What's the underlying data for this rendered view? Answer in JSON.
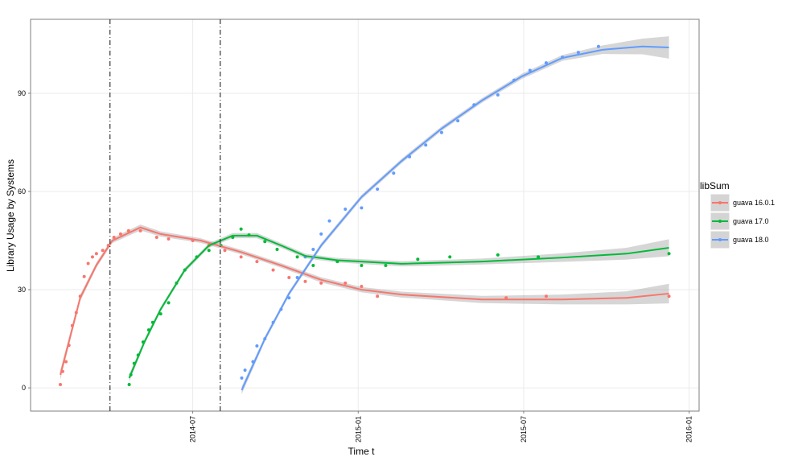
{
  "chart_data": {
    "type": "scatter",
    "x_label": "Time t",
    "y_label": "Library Usage by Systems",
    "xlim": [
      2014.01,
      2016.03
    ],
    "ylim": [
      -7.1,
      112.6
    ],
    "xticks": [
      {
        "value": 2014.5,
        "label": "2014-07"
      },
      {
        "value": 2015.0,
        "label": "2015-01"
      },
      {
        "value": 2015.5,
        "label": "2015-07"
      },
      {
        "value": 2016.0,
        "label": "2016-01"
      }
    ],
    "yticks": [
      0,
      30,
      60,
      90
    ],
    "grid": true,
    "vlines": [
      2014.25,
      2014.583
    ],
    "legend_title": "libSum",
    "legend_position": "right",
    "series": [
      {
        "name": "guava 16.0.1",
        "color": "#F8766D",
        "x": [
          2014.1,
          2014.107,
          2014.117,
          2014.126,
          2014.136,
          2014.148,
          2014.16,
          2014.172,
          2014.184,
          2014.197,
          2014.209,
          2014.228,
          2014.245,
          2014.262,
          2014.282,
          2014.306,
          2014.342,
          2014.391,
          2014.427,
          2014.5,
          2014.549,
          2014.597,
          2014.646,
          2014.694,
          2014.743,
          2014.791,
          2014.84,
          2014.888,
          2014.961,
          2015.01,
          2015.058,
          2015.447,
          2015.568,
          2015.939
        ],
        "values": [
          1,
          5,
          8,
          13,
          19,
          23,
          28,
          34,
          38,
          40,
          41,
          42,
          43.5,
          46,
          47,
          48,
          48,
          46,
          45.5,
          45,
          43.5,
          42,
          40,
          38.6,
          36,
          33.7,
          32.5,
          32,
          32,
          31,
          28,
          27.5,
          28,
          28
        ],
        "smooth": {
          "x": [
            2014.1,
            2014.16,
            2014.209,
            2014.257,
            2014.342,
            2014.403,
            2014.524,
            2014.646,
            2014.767,
            2014.888,
            2015.01,
            2015.131,
            2015.374,
            2015.617,
            2015.811,
            2015.939
          ],
          "values": [
            4,
            27.5,
            37.5,
            45,
            49,
            47,
            45,
            41.5,
            37.4,
            33,
            30,
            28.5,
            27,
            27,
            27.5,
            28.8
          ],
          "lower": [
            2.5,
            26.5,
            36.7,
            44.2,
            48.1,
            46.2,
            44.3,
            40.8,
            36.7,
            32.2,
            29.2,
            27.6,
            25.9,
            25.5,
            25.5,
            25.8
          ],
          "upper": [
            5.5,
            28.5,
            38.3,
            45.8,
            49.9,
            47.8,
            45.7,
            42.2,
            38.1,
            33.8,
            30.8,
            29.4,
            28.1,
            28.5,
            29.5,
            31.8
          ]
        }
      },
      {
        "name": "guava 17.0",
        "color": "#00BA38",
        "x": [
          2014.308,
          2014.313,
          2014.323,
          2014.335,
          2014.35,
          2014.367,
          2014.379,
          2014.403,
          2014.427,
          2014.451,
          2014.476,
          2014.512,
          2014.549,
          2014.585,
          2014.621,
          2014.646,
          2014.67,
          2014.718,
          2014.755,
          2014.816,
          2014.864,
          2014.937,
          2015.01,
          2015.083,
          2015.18,
          2015.277,
          2015.422,
          2015.544,
          2015.939
        ],
        "values": [
          1,
          4,
          7.5,
          10,
          14,
          17.7,
          20,
          22.6,
          26,
          32,
          36,
          40,
          42,
          43.5,
          46,
          48.5,
          46.7,
          44.7,
          42.3,
          40,
          37.4,
          38.6,
          37.4,
          37.4,
          39.3,
          40,
          40.6,
          40,
          41
        ],
        "smooth": {
          "x": [
            2014.308,
            2014.354,
            2014.403,
            2014.476,
            2014.549,
            2014.621,
            2014.694,
            2014.767,
            2014.84,
            2014.937,
            2015.131,
            2015.374,
            2015.617,
            2015.811,
            2015.939
          ],
          "values": [
            3,
            14,
            24,
            36,
            43.5,
            46.5,
            46.5,
            43.5,
            40.3,
            39,
            37.9,
            38.6,
            39.8,
            41,
            42.8
          ],
          "lower": [
            1.8,
            13.2,
            23.3,
            35.3,
            42.8,
            45.7,
            45.7,
            42.8,
            39.6,
            38.3,
            37.1,
            37.7,
            38.5,
            39.2,
            40.2
          ],
          "upper": [
            4.2,
            14.8,
            24.7,
            36.7,
            44.2,
            47.3,
            47.3,
            44.2,
            41,
            39.7,
            38.7,
            39.5,
            41.1,
            42.8,
            45.4
          ]
        }
      },
      {
        "name": "guava 18.0",
        "color": "#619CFF",
        "x": [
          2014.648,
          2014.658,
          2014.682,
          2014.694,
          2014.718,
          2014.743,
          2014.767,
          2014.791,
          2014.816,
          2014.84,
          2014.864,
          2014.888,
          2014.913,
          2014.961,
          2015.01,
          2015.058,
          2015.107,
          2015.155,
          2015.204,
          2015.252,
          2015.301,
          2015.35,
          2015.422,
          2015.471,
          2015.519,
          2015.568,
          2015.617,
          2015.665,
          2015.726
        ],
        "values": [
          3,
          5.4,
          8,
          12.8,
          15,
          20,
          24,
          27.5,
          33.7,
          40,
          42.3,
          47,
          51,
          54.6,
          55,
          60.7,
          65.6,
          70.6,
          74.2,
          78,
          81.6,
          86.5,
          89.5,
          94,
          97,
          99.3,
          101,
          102.5,
          104.3
        ],
        "smooth": {
          "x": [
            2014.648,
            2014.718,
            2014.791,
            2014.888,
            2015.01,
            2015.131,
            2015.252,
            2015.374,
            2015.495,
            2015.617,
            2015.738,
            2015.859,
            2015.939
          ],
          "values": [
            -0.7,
            15,
            28.8,
            43.5,
            58.3,
            69.3,
            79.2,
            87.8,
            95.2,
            100.8,
            103.3,
            104.3,
            104
          ],
          "lower": [
            -1.9,
            14.2,
            28.1,
            42.8,
            57.6,
            68.6,
            78.5,
            87.1,
            94.4,
            99.9,
            102,
            101.9,
            100.6
          ],
          "upper": [
            0.5,
            15.8,
            29.5,
            44.2,
            59,
            70,
            79.9,
            88.5,
            96,
            101.7,
            104.6,
            106.7,
            107.4
          ]
        }
      }
    ]
  }
}
